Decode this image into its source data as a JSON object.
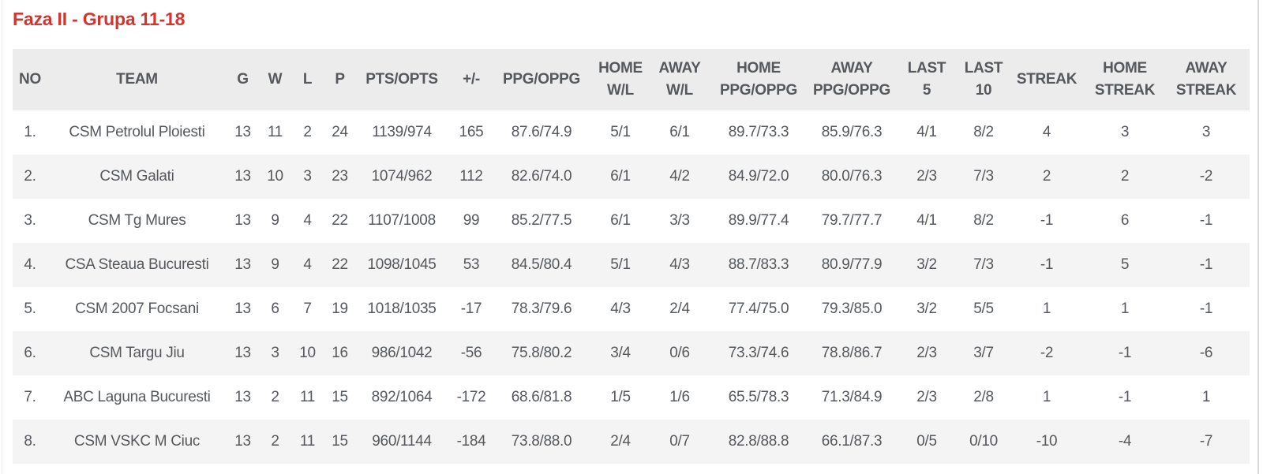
{
  "title": "Faza II - Grupa 11-18",
  "colors": {
    "accent": "#d2342e",
    "header_bg": "#ececec",
    "row_alt_bg": "#f4f4f4",
    "text": "#55585c",
    "divider": "#dcdcdc"
  },
  "table": {
    "columns": [
      {
        "key": "no",
        "label": "NO"
      },
      {
        "key": "team",
        "label": "TEAM"
      },
      {
        "key": "g",
        "label": "G"
      },
      {
        "key": "w",
        "label": "W"
      },
      {
        "key": "l",
        "label": "L"
      },
      {
        "key": "p",
        "label": "P"
      },
      {
        "key": "pts-opts",
        "label": "PTS/OPTS"
      },
      {
        "key": "plus-minus",
        "label": "+/-"
      },
      {
        "key": "ppg-oppg",
        "label": "PPG/OPPG"
      },
      {
        "key": "home-wl",
        "label": "HOME\nW/L"
      },
      {
        "key": "away-wl",
        "label": "AWAY\nW/L"
      },
      {
        "key": "home-ppg-oppg",
        "label": "HOME\nPPG/OPPG"
      },
      {
        "key": "away-ppg-oppg",
        "label": "AWAY\nPPG/OPPG"
      },
      {
        "key": "last-5",
        "label": "LAST\n5"
      },
      {
        "key": "last-10",
        "label": "LAST\n10"
      },
      {
        "key": "streak",
        "label": "STREAK"
      },
      {
        "key": "home-streak",
        "label": "HOME\nSTREAK"
      },
      {
        "key": "away-streak",
        "label": "AWAY\nSTREAK"
      }
    ],
    "rows": [
      {
        "cells": [
          "1.",
          "CSM Petrolul Ploiesti",
          "13",
          "11",
          "2",
          "24",
          "1139/974",
          "165",
          "87.6/74.9",
          "5/1",
          "6/1",
          "89.7/73.3",
          "85.9/76.3",
          "4/1",
          "8/2",
          "4",
          "3",
          "3"
        ]
      },
      {
        "cells": [
          "2.",
          "CSM Galati",
          "13",
          "10",
          "3",
          "23",
          "1074/962",
          "112",
          "82.6/74.0",
          "6/1",
          "4/2",
          "84.9/72.0",
          "80.0/76.3",
          "2/3",
          "7/3",
          "2",
          "2",
          "-2"
        ]
      },
      {
        "cells": [
          "3.",
          "CSM Tg Mures",
          "13",
          "9",
          "4",
          "22",
          "1107/1008",
          "99",
          "85.2/77.5",
          "6/1",
          "3/3",
          "89.9/77.4",
          "79.7/77.7",
          "4/1",
          "8/2",
          "-1",
          "6",
          "-1"
        ]
      },
      {
        "cells": [
          "4.",
          "CSA Steaua Bucuresti",
          "13",
          "9",
          "4",
          "22",
          "1098/1045",
          "53",
          "84.5/80.4",
          "5/1",
          "4/3",
          "88.7/83.3",
          "80.9/77.9",
          "3/2",
          "7/3",
          "-1",
          "5",
          "-1"
        ]
      },
      {
        "cells": [
          "5.",
          "CSM 2007 Focsani",
          "13",
          "6",
          "7",
          "19",
          "1018/1035",
          "-17",
          "78.3/79.6",
          "4/3",
          "2/4",
          "77.4/75.0",
          "79.3/85.0",
          "3/2",
          "5/5",
          "1",
          "1",
          "-1"
        ]
      },
      {
        "cells": [
          "6.",
          "CSM Targu Jiu",
          "13",
          "3",
          "10",
          "16",
          "986/1042",
          "-56",
          "75.8/80.2",
          "3/4",
          "0/6",
          "73.3/74.6",
          "78.8/86.7",
          "2/3",
          "3/7",
          "-2",
          "-1",
          "-6"
        ]
      },
      {
        "cells": [
          "7.",
          "ABC Laguna Bucuresti",
          "13",
          "2",
          "11",
          "15",
          "892/1064",
          "-172",
          "68.6/81.8",
          "1/5",
          "1/6",
          "65.5/78.3",
          "71.3/84.9",
          "2/3",
          "2/8",
          "1",
          "-1",
          "1"
        ]
      },
      {
        "cells": [
          "8.",
          "CSM VSKC M Ciuc",
          "13",
          "2",
          "11",
          "15",
          "960/1144",
          "-184",
          "73.8/88.0",
          "2/4",
          "0/7",
          "82.8/88.8",
          "66.1/87.3",
          "0/5",
          "0/10",
          "-10",
          "-4",
          "-7"
        ]
      }
    ]
  }
}
